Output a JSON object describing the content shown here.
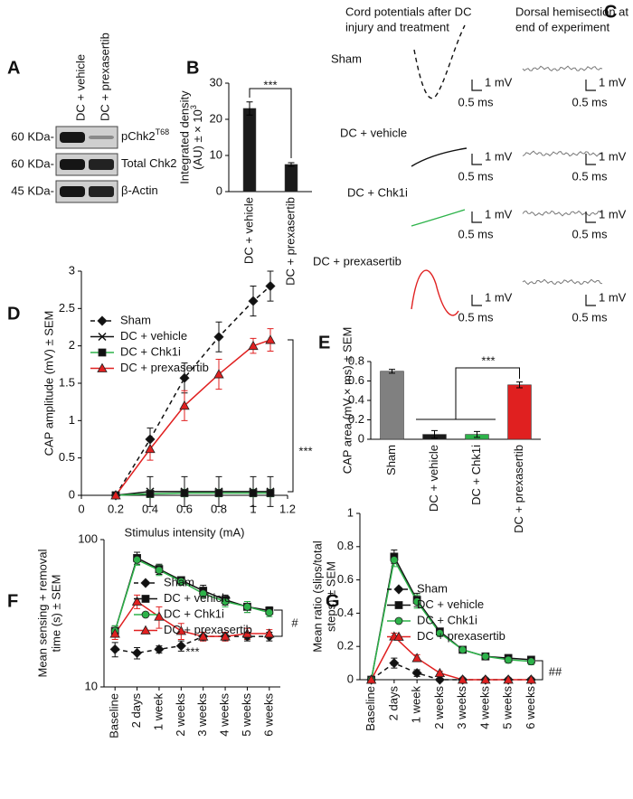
{
  "panel_labels": [
    "A",
    "B",
    "C",
    "D",
    "E",
    "F",
    "G"
  ],
  "blot": {
    "conditions": [
      "DC + vehicle",
      "DC + prexasertib"
    ],
    "rows": [
      {
        "weight": "60 KDa-",
        "label": "pChk2",
        "label_sup": "T68"
      },
      {
        "weight": "60 KDa-",
        "label": "Total Chk2"
      },
      {
        "weight": "45 KDa-",
        "label": "β-Actin"
      }
    ]
  },
  "traces": {
    "left_title": [
      "Cord potentials after DC",
      "injury and treatment"
    ],
    "right_title": [
      "Dorsal hemisection at",
      "end of experiment"
    ],
    "groups": [
      "Sham",
      "DC + vehicle",
      "DC + Chk1i",
      "DC + prexasertib"
    ],
    "scale_v": "1 mV",
    "scale_t": "0.5 ms"
  },
  "chart_data": [
    {
      "type": "bar",
      "y_label": [
        "Integrated density",
        "(AU) ± × 10"
      ],
      "y_label_sup": "3",
      "categories": [
        "DC + vehicle",
        "DC + prexasertib"
      ],
      "values": [
        23,
        7.5
      ],
      "errors": [
        1.8,
        0.5
      ],
      "color": "#1a1a1a",
      "ylim": [
        0,
        30
      ],
      "yticks": [
        0,
        10,
        20,
        30
      ],
      "annotations": [
        "***"
      ]
    },
    {
      "type": "line",
      "x_label": "Stimulus intensity (mA)",
      "y_label": [
        "CAP amplitude (mV) ± SEM"
      ],
      "x": [
        0.2,
        0.4,
        0.6,
        0.8,
        1,
        1.1
      ],
      "xlim": [
        0,
        1.2
      ],
      "xticks": [
        0,
        0.2,
        0.4,
        0.6,
        0.8,
        1,
        1.2
      ],
      "ylim": [
        0,
        3
      ],
      "yticks": [
        0,
        0.5,
        1,
        1.5,
        2,
        2.5,
        3
      ],
      "legend": "upper left",
      "annotations": [
        "***"
      ],
      "series": [
        {
          "name": "Sham",
          "color": "#111111",
          "dash": true,
          "marker": "diamond",
          "values": [
            0,
            0.75,
            1.57,
            2.12,
            2.6,
            2.8
          ],
          "errors": [
            0.03,
            0.15,
            0.2,
            0.2,
            0.2,
            0.2
          ]
        },
        {
          "name": "DC + vehicle",
          "color": "#111111",
          "marker": "x",
          "values": [
            0,
            0.05,
            0.05,
            0.05,
            0.05,
            0.05
          ],
          "errors": [
            0.03,
            0.2,
            0.2,
            0.2,
            0.2,
            0.2
          ]
        },
        {
          "name": "DC + Chk1i",
          "color": "#2db34a",
          "marker": "square",
          "marker_color": "#111111",
          "values": [
            0,
            0.02,
            0.03,
            0.03,
            0.03,
            0.03
          ],
          "errors": [
            0.03,
            0.05,
            0.05,
            0.05,
            0.05,
            0.05
          ]
        },
        {
          "name": "DC + prexasertib",
          "color": "#e02020",
          "marker": "triangle",
          "values": [
            0,
            0.62,
            1.2,
            1.62,
            2,
            2.08
          ],
          "errors": [
            0.03,
            0.15,
            0.2,
            0.2,
            0.1,
            0.15
          ]
        }
      ]
    },
    {
      "type": "bar",
      "y_label": [
        "CAP area (mV × ms) ± SEM"
      ],
      "categories": [
        "Sham",
        "DC + vehicle",
        "DC + Chk1i",
        "DC + prexasertib"
      ],
      "values": [
        0.7,
        0.05,
        0.05,
        0.56
      ],
      "errors": [
        0.02,
        0.04,
        0.03,
        0.03
      ],
      "colors": [
        "#808080",
        "#1a1a1a",
        "#2db34a",
        "#e02020"
      ],
      "ylim": [
        0,
        0.8
      ],
      "yticks": [
        0,
        0.2,
        0.4,
        0.6,
        0.8
      ],
      "annotations": [
        "***"
      ]
    },
    {
      "type": "line",
      "y_label": [
        "Mean sensing + removal",
        "time (s) ± SEM"
      ],
      "log_y": true,
      "categories": [
        "Baseline",
        "2 days",
        "1 week",
        "2 weeks",
        "3 weeks",
        "4 weeks",
        "5 weeks",
        "6 weeks"
      ],
      "ylim": [
        10,
        100
      ],
      "yticks": [
        10,
        100
      ],
      "legend": "upper left",
      "annotations": [
        "***",
        "#"
      ],
      "series": [
        {
          "name": "Sham",
          "color": "#111111",
          "dash": true,
          "marker": "diamond",
          "values": [
            18,
            17,
            18,
            19,
            22,
            22,
            22,
            22
          ],
          "errors": [
            2,
            1.5,
            1,
            1.5,
            1.5,
            1.5,
            1.5,
            1.5
          ]
        },
        {
          "name": "DC + vehicle",
          "color": "#111111",
          "marker": "square",
          "values": [
            24,
            75,
            63,
            53,
            45,
            39,
            35,
            33
          ],
          "errors": [
            2,
            7,
            5,
            3,
            4,
            3,
            3,
            2
          ]
        },
        {
          "name": "DC + Chk1i",
          "color": "#2db34a",
          "marker": "circle",
          "values": [
            24,
            73,
            62,
            52,
            43,
            38,
            35,
            32
          ],
          "errors": [
            2,
            6,
            5,
            3,
            3,
            3,
            3,
            2
          ]
        },
        {
          "name": "DC + prexasertib",
          "color": "#e02020",
          "marker": "triangle",
          "values": [
            23,
            38,
            30,
            24,
            22,
            22,
            23,
            23
          ],
          "errors": [
            2,
            4,
            5,
            3,
            1.5,
            1.5,
            2,
            1.5
          ]
        }
      ]
    },
    {
      "type": "line",
      "y_label": [
        "Mean ratio (slips/total",
        "steps) ± SEM"
      ],
      "categories": [
        "Baseline",
        "2 days",
        "1 week",
        "2 weeks",
        "3 weeks",
        "4 weeks",
        "5 weeks",
        "6 weeks"
      ],
      "ylim": [
        0,
        1
      ],
      "yticks": [
        0,
        0.2,
        0.4,
        0.6,
        0.8,
        1
      ],
      "legend": "upper left",
      "annotations": [
        "##"
      ],
      "series": [
        {
          "name": "Sham",
          "color": "#111111",
          "dash": true,
          "marker": "diamond",
          "values": [
            0,
            0.1,
            0.04,
            0,
            0,
            0,
            0,
            0
          ],
          "errors": [
            0.01,
            0.03,
            0.02,
            0.01,
            0.01,
            0.01,
            0.01,
            0.01
          ]
        },
        {
          "name": "DC + vehicle",
          "color": "#111111",
          "marker": "square",
          "values": [
            0,
            0.74,
            0.48,
            0.29,
            0.18,
            0.14,
            0.13,
            0.12
          ],
          "errors": [
            0.01,
            0.04,
            0.04,
            0.02,
            0.02,
            0.02,
            0.02,
            0.02
          ]
        },
        {
          "name": "DC + Chk1i",
          "color": "#2db34a",
          "marker": "circle",
          "values": [
            0,
            0.72,
            0.47,
            0.28,
            0.18,
            0.14,
            0.12,
            0.11
          ],
          "errors": [
            0.01,
            0.04,
            0.04,
            0.02,
            0.02,
            0.02,
            0.02,
            0.02
          ]
        },
        {
          "name": "DC + prexasertib",
          "color": "#e02020",
          "marker": "triangle",
          "values": [
            0,
            0.26,
            0.13,
            0.04,
            0,
            0,
            0,
            0
          ],
          "errors": [
            0.01,
            0.02,
            0.02,
            0.01,
            0.01,
            0.01,
            0.01,
            0.01
          ]
        }
      ]
    }
  ]
}
